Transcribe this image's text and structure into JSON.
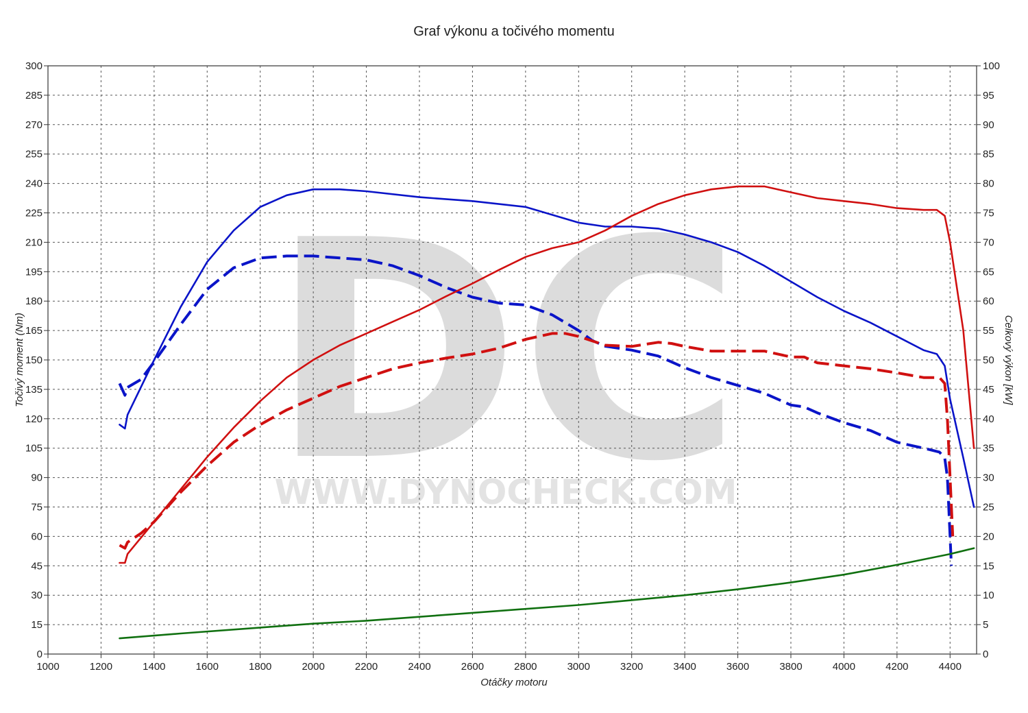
{
  "watermark": {
    "logo": "DC",
    "url": "WWW.DYNOCHECK.COM"
  },
  "chart_data": {
    "type": "line",
    "title": "Graf výkonu a točivého momentu",
    "xlabel": "Otáčky motoru",
    "ylabel_left": "Točivý moment (Nm)",
    "ylabel_right": "Celkový výkon [kW]",
    "xlim": [
      1000,
      4500
    ],
    "xticks": [
      1000,
      1200,
      1400,
      1600,
      1800,
      2000,
      2200,
      2400,
      2600,
      2800,
      3000,
      3200,
      3400,
      3600,
      3800,
      4000,
      4200,
      4400
    ],
    "ylim_left": [
      0,
      300
    ],
    "yticks_left": [
      0,
      15,
      30,
      45,
      60,
      75,
      90,
      105,
      120,
      135,
      150,
      165,
      180,
      195,
      210,
      225,
      240,
      255,
      270,
      285,
      300
    ],
    "ylim_right": [
      0,
      100
    ],
    "yticks_right": [
      0,
      5,
      10,
      15,
      20,
      25,
      30,
      35,
      40,
      45,
      50,
      55,
      60,
      65,
      70,
      75,
      80,
      85,
      90,
      95,
      100
    ],
    "grid": true,
    "series": [
      {
        "axis": "left",
        "color": "#0a14c8",
        "style": "solid",
        "x": [
          1270,
          1290,
          1300,
          1400,
          1500,
          1600,
          1700,
          1800,
          1900,
          2000,
          2100,
          2200,
          2400,
          2600,
          2800,
          3000,
          3100,
          3200,
          3300,
          3400,
          3500,
          3600,
          3700,
          3800,
          3900,
          4000,
          4100,
          4200,
          4300,
          4350,
          4380,
          4400,
          4450,
          4490
        ],
        "y": [
          117,
          115,
          122,
          150,
          177,
          200,
          216,
          228,
          234,
          237,
          237,
          236,
          233,
          231,
          228,
          220,
          218,
          218,
          217,
          214,
          210,
          205,
          198,
          190,
          182,
          175,
          169,
          162,
          155,
          153,
          147,
          130,
          100,
          75
        ]
      },
      {
        "axis": "left",
        "color": "#0a14c8",
        "style": "dashed",
        "x": [
          1270,
          1290,
          1300,
          1350,
          1400,
          1500,
          1600,
          1700,
          1800,
          1900,
          2000,
          2100,
          2200,
          2300,
          2400,
          2500,
          2600,
          2700,
          2800,
          2900,
          3000,
          3050,
          3100,
          3200,
          3300,
          3400,
          3500,
          3600,
          3700,
          3800,
          3850,
          3900,
          4000,
          4100,
          4200,
          4300,
          4360,
          4380,
          4390,
          4400,
          4405
        ],
        "y": [
          138,
          132,
          136,
          140,
          149,
          168,
          186,
          197,
          202,
          203,
          203,
          202,
          201,
          198,
          193,
          187,
          182,
          179,
          178,
          173,
          165,
          160,
          157,
          155,
          152,
          146,
          141,
          137,
          133,
          127,
          126,
          123,
          118,
          114,
          108,
          105,
          103,
          100,
          90,
          60,
          45
        ]
      },
      {
        "axis": "right",
        "color": "#d01010",
        "style": "solid",
        "x": [
          1270,
          1290,
          1300,
          1400,
          1500,
          1600,
          1700,
          1800,
          1900,
          2000,
          2100,
          2200,
          2300,
          2400,
          2500,
          2600,
          2700,
          2800,
          2900,
          3000,
          3100,
          3200,
          3300,
          3400,
          3500,
          3600,
          3700,
          3800,
          3900,
          4000,
          4100,
          4200,
          4300,
          4350,
          4380,
          4400,
          4450,
          4490
        ],
        "y": [
          15.5,
          15.5,
          17,
          22.5,
          28,
          33.5,
          38.5,
          43,
          47,
          50,
          52.5,
          54.5,
          56.5,
          58.5,
          60.8,
          63,
          65.3,
          67.5,
          69,
          70,
          72,
          74.5,
          76.5,
          78,
          79,
          79.5,
          79.5,
          78.5,
          77.5,
          77,
          76.5,
          75.8,
          75.5,
          75.5,
          74.5,
          70,
          55,
          35
        ]
      },
      {
        "axis": "right",
        "color": "#d01010",
        "style": "dashed",
        "x": [
          1270,
          1290,
          1300,
          1350,
          1400,
          1500,
          1600,
          1700,
          1800,
          1900,
          2000,
          2100,
          2200,
          2300,
          2400,
          2500,
          2600,
          2700,
          2800,
          2900,
          2950,
          3000,
          3100,
          3200,
          3300,
          3350,
          3400,
          3500,
          3600,
          3700,
          3800,
          3850,
          3900,
          4000,
          4100,
          4200,
          4300,
          4360,
          4380,
          4390,
          4400,
          4410
        ],
        "y": [
          18.5,
          18,
          19,
          20.5,
          22.5,
          27.5,
          32,
          36,
          39,
          41.5,
          43.5,
          45.5,
          47,
          48.5,
          49.5,
          50.3,
          51,
          52,
          53.5,
          54.5,
          54.5,
          54,
          52.5,
          52.3,
          53,
          52.8,
          52.3,
          51.5,
          51.5,
          51.5,
          50.5,
          50.5,
          49.5,
          49,
          48.5,
          47.8,
          47,
          47,
          46,
          40,
          30,
          20
        ]
      },
      {
        "axis": "left",
        "color": "#107010",
        "style": "solid",
        "x": [
          1270,
          1500,
          1800,
          2000,
          2200,
          2400,
          2600,
          2800,
          3000,
          3200,
          3400,
          3600,
          3800,
          4000,
          4200,
          4400,
          4490
        ],
        "y": [
          8,
          10.5,
          13.5,
          15.5,
          17,
          19,
          21,
          23,
          25,
          27.5,
          30,
          33,
          36.5,
          40.5,
          45.5,
          51,
          54
        ]
      }
    ]
  }
}
